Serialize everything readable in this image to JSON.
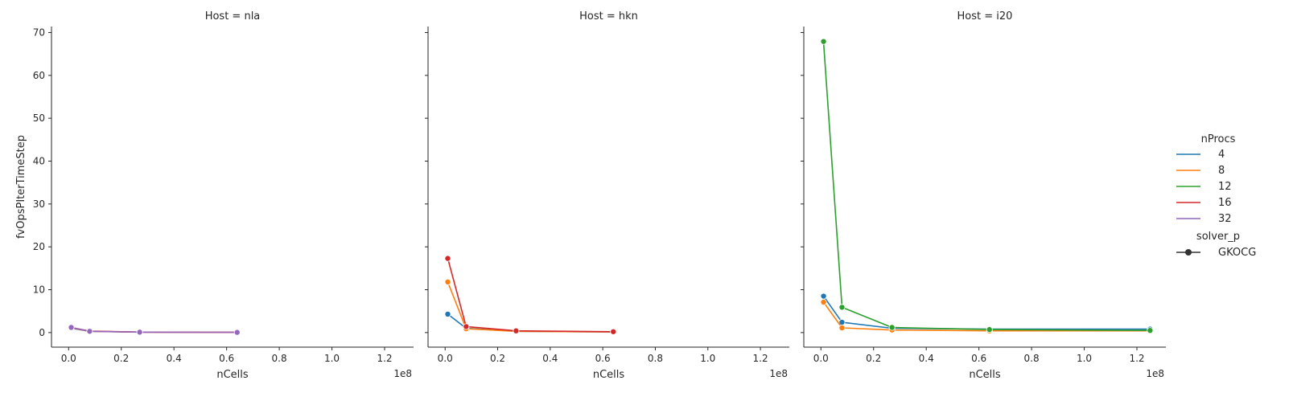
{
  "chart_data": {
    "type": "line",
    "facet_label": "Host",
    "xlabel": "nCells",
    "ylabel": "fvOpsPIterTimeStep",
    "x_offset_text": "1e8",
    "x_scale_factor": 100000000,
    "xlim": [
      -0.065,
      1.31
    ],
    "ylim": [
      -3.4,
      71.4
    ],
    "x_ticks": [
      0.0,
      0.2,
      0.4,
      0.6,
      0.8,
      1.0,
      1.2
    ],
    "x_tick_labels": [
      "0.0",
      "0.2",
      "0.4",
      "0.6",
      "0.8",
      "1.0",
      "1.2"
    ],
    "y_ticks": [
      0,
      10,
      20,
      30,
      40,
      50,
      60,
      70
    ],
    "y_tick_labels": [
      "0",
      "10",
      "20",
      "30",
      "40",
      "50",
      "60",
      "70"
    ],
    "grid": false,
    "legend": {
      "placement": "right",
      "hue_title": "nProcs",
      "style_title": "solver_p",
      "style_entries": [
        "GKOCG"
      ],
      "hue_entries": [
        {
          "label": "4",
          "color": "#1f77b4"
        },
        {
          "label": "8",
          "color": "#ff7f0e"
        },
        {
          "label": "12",
          "color": "#2ca02c"
        },
        {
          "label": "16",
          "color": "#d62728"
        },
        {
          "label": "32",
          "color": "#9467bd"
        }
      ]
    },
    "panels": [
      {
        "title": "Host = nla",
        "series": [
          {
            "nProcs": "4",
            "x": [
              0.01,
              0.08,
              0.27,
              0.64
            ],
            "y": [
              1.0,
              0.3,
              0.1,
              0.05
            ]
          },
          {
            "nProcs": "8",
            "x": [
              0.01,
              0.08,
              0.27,
              0.64
            ],
            "y": [
              1.1,
              0.3,
              0.1,
              0.05
            ]
          },
          {
            "nProcs": "16",
            "x": [
              0.01,
              0.08,
              0.27,
              0.64
            ],
            "y": [
              1.2,
              0.35,
              0.1,
              0.05
            ]
          },
          {
            "nProcs": "32",
            "x": [
              0.01,
              0.08,
              0.27,
              0.64
            ],
            "y": [
              1.2,
              0.3,
              0.1,
              0.05
            ]
          }
        ]
      },
      {
        "title": "Host = hkn",
        "series": [
          {
            "nProcs": "4",
            "x": [
              0.01,
              0.08,
              0.27,
              0.64
            ],
            "y": [
              4.3,
              1.0,
              0.3,
              0.15
            ]
          },
          {
            "nProcs": "8",
            "x": [
              0.01,
              0.08,
              0.27,
              0.64
            ],
            "y": [
              11.8,
              0.9,
              0.3,
              0.15
            ]
          },
          {
            "nProcs": "16",
            "x": [
              0.01,
              0.08,
              0.27,
              0.64
            ],
            "y": [
              17.3,
              1.4,
              0.4,
              0.2
            ]
          }
        ]
      },
      {
        "title": "Host = i20",
        "series": [
          {
            "nProcs": "4",
            "x": [
              0.01,
              0.08,
              0.27,
              0.64,
              1.25
            ],
            "y": [
              8.5,
              2.4,
              1.0,
              0.8,
              0.8
            ]
          },
          {
            "nProcs": "8",
            "x": [
              0.01,
              0.08,
              0.27,
              0.64,
              1.25
            ],
            "y": [
              7.1,
              1.1,
              0.6,
              0.4,
              0.4
            ]
          },
          {
            "nProcs": "12",
            "x": [
              0.01,
              0.08,
              0.27,
              0.64,
              1.25
            ],
            "y": [
              67.9,
              5.9,
              1.2,
              0.7,
              0.5
            ]
          }
        ]
      }
    ]
  }
}
